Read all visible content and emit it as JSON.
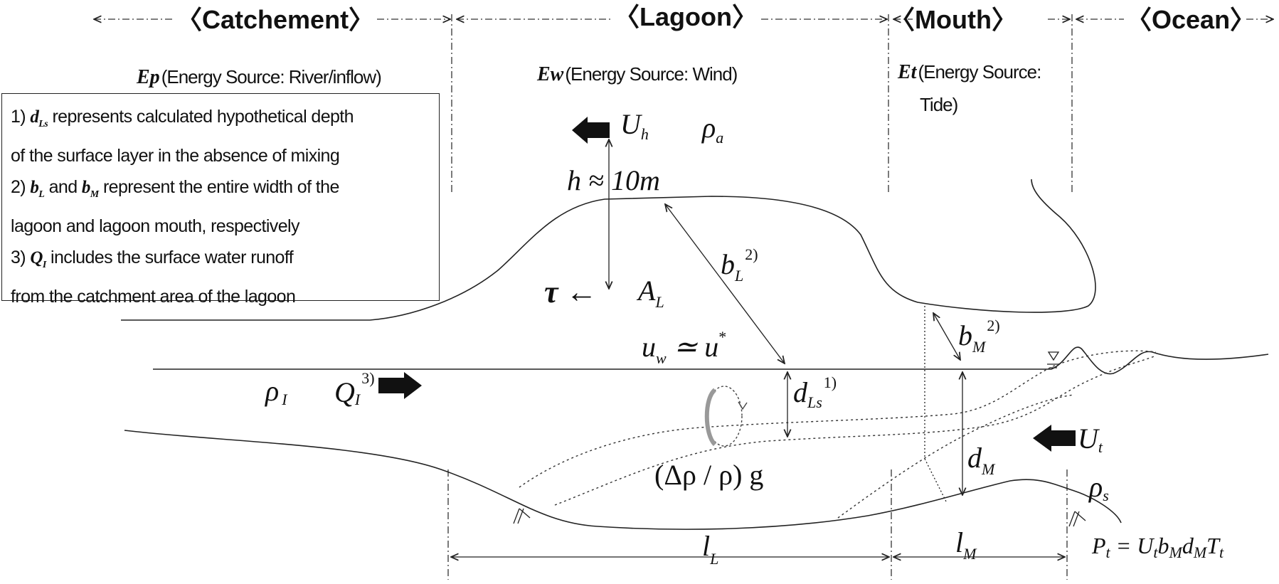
{
  "sections": {
    "catchment": "〈Catchement〉",
    "lagoon": "〈Lagoon〉",
    "mouth": "〈Mouth〉",
    "ocean": "〈Ocean〉"
  },
  "sources": {
    "ep_symbol": "Ep",
    "ep_text": "(Energy Source: River/inflow)",
    "ew_symbol": "Ew",
    "ew_text": "(Energy Source: Wind)",
    "et_symbol": "Et",
    "et_text_1": "(Energy Source:",
    "et_text_2": "Tide)"
  },
  "notes": {
    "n1_prefix": "1) ",
    "n1_sym": "d",
    "n1_sub": "Ls",
    "n1_rest": " represents calculated hypothetical depth",
    "n1_line2": "of the surface layer in the absence of mixing",
    "n2_prefix": "2) ",
    "n2_sym1": "b",
    "n2_sub1": "L",
    "n2_and": " and ",
    "n2_sym2": "b",
    "n2_sub2": "M",
    "n2_rest": " represent the entire width of the",
    "n2_line2": "lagoon and lagoon mouth, respectively",
    "n3_prefix": "3) ",
    "n3_sym": "Q",
    "n3_sub": "I",
    "n3_rest": " includes the surface water runoff",
    "n3_line2": "from the catchment area of the lagoon"
  },
  "symbols": {
    "Uh": "U",
    "Uh_sub": "h",
    "rho_a": "ρ",
    "rho_a_sub": "a",
    "h_label": "h ≈ 10m",
    "tau": "τ ←",
    "AL": "A",
    "AL_sub": "L",
    "bL": "b",
    "bL_sub": "L",
    "bL_sup": "2)",
    "uw": "u",
    "uw_sub": "w",
    "uw_rel": "≃ u",
    "uw_star": "*",
    "bM": "b",
    "bM_sub": "M",
    "bM_sup": "2)",
    "rho_I": "ρ",
    "rho_I_sub": "I",
    "QI": "Q",
    "QI_sub": "I",
    "QI_sup": "3)",
    "dLs": "d",
    "dLs_sub": "Ls",
    "dLs_sup": "1)",
    "buoy": "(Δρ / ρ) g",
    "dM": "d",
    "dM_sub": "M",
    "Ut": "U",
    "Ut_sub": "t",
    "rho_s": "ρ",
    "rho_s_sub": "s",
    "lL": "l",
    "lL_sub": "L",
    "lM": "l",
    "lM_sub": "M",
    "Pt": "P",
    "Pt_sub": "t",
    "Pt_eq": " = U",
    "Pt_t1": "t",
    "Pt_b": "b",
    "Pt_M1": "M",
    "Pt_d": "d",
    "Pt_M2": "M",
    "Pt_T": "T",
    "Pt_t2": "t"
  }
}
